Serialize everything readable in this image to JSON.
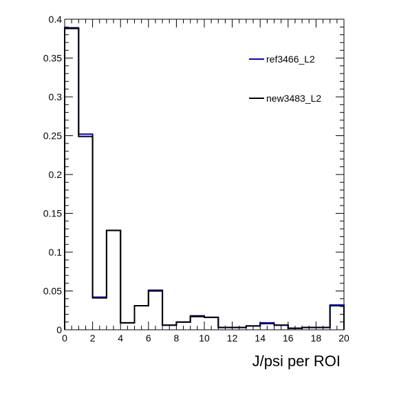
{
  "chart_data": {
    "type": "histogram",
    "xlabel": "J/psi per ROI",
    "ylabel": "",
    "xlim": [
      0,
      20
    ],
    "ylim": [
      0,
      0.4
    ],
    "x_ticks": [
      0,
      2,
      4,
      6,
      8,
      10,
      12,
      14,
      16,
      18,
      20
    ],
    "y_ticks": [
      0,
      0.05,
      0.1,
      0.15,
      0.2,
      0.25,
      0.3,
      0.35,
      0.4
    ],
    "x_tick_labels": [
      "0",
      "2",
      "4",
      "6",
      "8",
      "10",
      "12",
      "14",
      "16",
      "18",
      "20"
    ],
    "y_tick_labels": [
      "0",
      "0.05",
      "0.1",
      "0.15",
      "0.2",
      "0.25",
      "0.3",
      "0.35",
      "0.4"
    ],
    "bin_edges": [
      0,
      1,
      2,
      3,
      4,
      5,
      6,
      7,
      8,
      9,
      10,
      11,
      12,
      13,
      14,
      15,
      16,
      17,
      18,
      19,
      20
    ],
    "grid": false,
    "legend_position": "top-right",
    "series": [
      {
        "name": "ref3466_L2",
        "color": "#0000cc",
        "values": [
          0.389,
          0.252,
          0.042,
          0.128,
          0.009,
          0.031,
          0.051,
          0.006,
          0.01,
          0.018,
          0.016,
          0.003,
          0.003,
          0.005,
          0.009,
          0.006,
          0.002,
          0.003,
          0.003,
          0.032
        ]
      },
      {
        "name": "new3483_L2",
        "color": "#000000",
        "values": [
          0.388,
          0.249,
          0.041,
          0.128,
          0.009,
          0.031,
          0.05,
          0.006,
          0.01,
          0.017,
          0.016,
          0.003,
          0.003,
          0.005,
          0.008,
          0.006,
          0.002,
          0.003,
          0.003,
          0.031
        ]
      }
    ]
  }
}
